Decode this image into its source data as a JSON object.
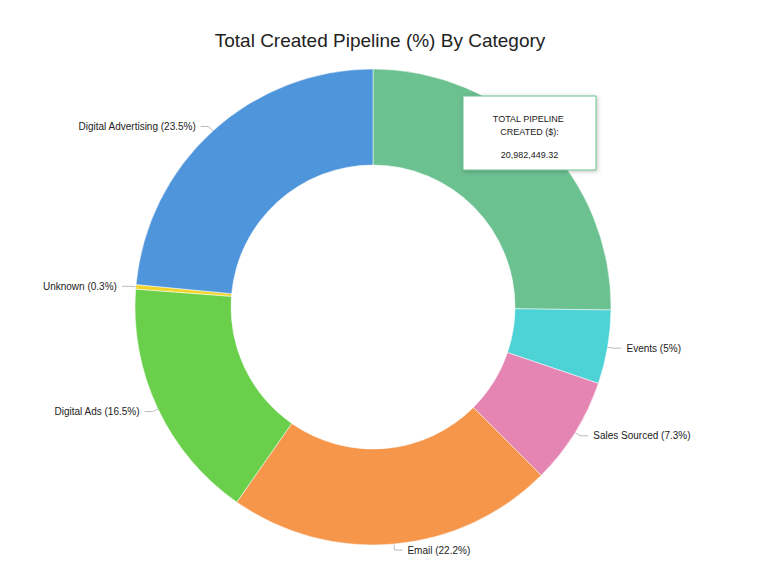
{
  "chart_data": {
    "type": "pie",
    "title": "Total Created Pipeline (%) By Category",
    "categories": [
      null,
      "Events",
      "Sales Sourced",
      "Email",
      "Digital Ads",
      "Unknown",
      "Digital Advertising"
    ],
    "values": [
      25.2,
      5,
      7.3,
      22.2,
      16.5,
      0.3,
      23.5
    ],
    "value_labels": [
      null,
      "Events (5%)",
      "Sales Sourced (7.3%)",
      "Email (22.2%)",
      "Digital Ads (16.5%)",
      "Unknown (0.3%)",
      "Digital Advertising (23.5%)"
    ],
    "colors": [
      "#6cc191",
      "#4dd3d6",
      "#e585b3",
      "#f5964b",
      "#6ad04b",
      "#f2d52c",
      "#4f95db"
    ],
    "data_labels": true,
    "annotations": [
      "TOTAL PIPELINE CREATED ($):",
      "20,982,449.32"
    ]
  }
}
